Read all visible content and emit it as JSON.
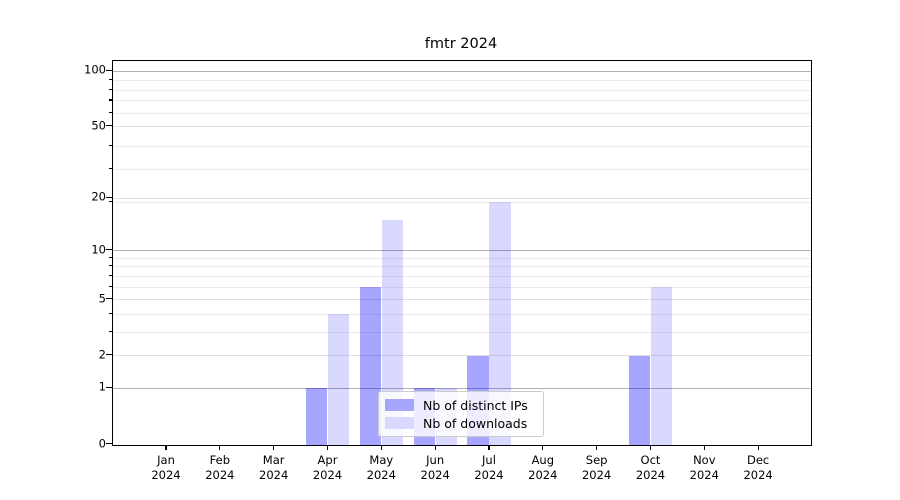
{
  "title": "fmtr 2024",
  "legend": {
    "items": [
      {
        "label": "Nb of distinct IPs",
        "swatch_color": "#a6a6ff"
      },
      {
        "label": "Nb of downloads",
        "swatch_color": "#d9d9ff"
      }
    ],
    "position": "lower center"
  },
  "chart_data": {
    "type": "bar",
    "title": "fmtr 2024",
    "categories": [
      "Jan 2024",
      "Feb 2024",
      "Mar 2024",
      "Apr 2024",
      "May 2024",
      "Jun 2024",
      "Jul 2024",
      "Aug 2024",
      "Sep 2024",
      "Oct 2024",
      "Nov 2024",
      "Dec 2024"
    ],
    "series": [
      {
        "name": "Nb of distinct IPs",
        "color": "rgba(0,0,255,0.35)",
        "swatch_color": "#a6a6ff",
        "values": [
          0,
          0,
          0,
          1,
          6,
          1,
          2,
          0,
          0,
          2,
          0,
          0
        ]
      },
      {
        "name": "Nb of downloads",
        "color": "rgba(0,0,255,0.15)",
        "swatch_color": "#d9d9ff",
        "values": [
          0,
          0,
          0,
          4,
          15,
          1,
          19,
          0,
          0,
          6,
          0,
          0
        ]
      }
    ],
    "xlabel": "",
    "ylabel": "",
    "yscale": "log1p",
    "ylim": [
      0,
      114
    ],
    "yticks": [
      0,
      1,
      2,
      5,
      10,
      20,
      50,
      100
    ],
    "minor_yticks": [
      3,
      4,
      6,
      7,
      8,
      9,
      19,
      29,
      39,
      59,
      69,
      79,
      89
    ],
    "grid": true,
    "grid_colors": {
      "major": "#b0b0b0",
      "sub": "#e0e0e0",
      "minor": "#ececec"
    },
    "major_grid_values": [
      1,
      10,
      100
    ],
    "legend_position": "lower center"
  }
}
